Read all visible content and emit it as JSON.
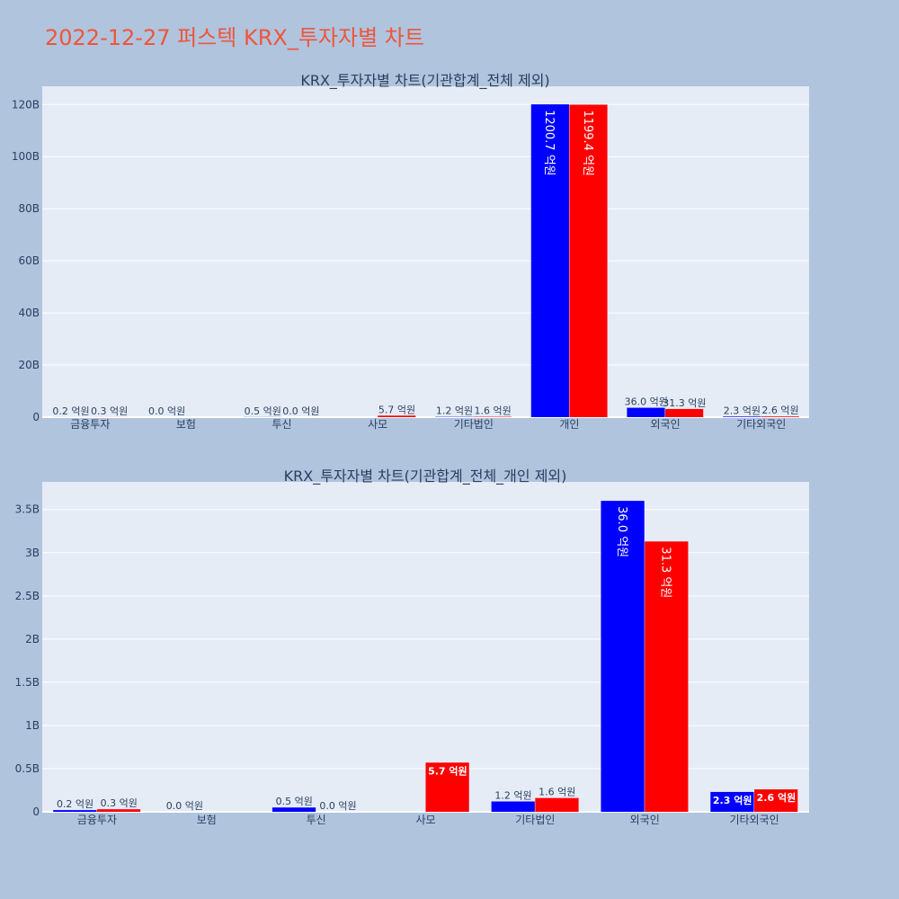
{
  "page_title": "2022-12-27 퍼스텍 KRX_투자자별 차트",
  "colors": {
    "buy": "#0000ff",
    "sell": "#ff0000",
    "plot_bg": "#e5ecf6",
    "page_bg": "#b0c4de",
    "text": "#2a3f5f",
    "title": "#ef553b"
  },
  "chart_data": [
    {
      "type": "bar",
      "title": "KRX_투자자별 차트(기관합계_전체 제외)",
      "categories": [
        "금융투자",
        "보험",
        "투신",
        "사모",
        "기타법인",
        "개인",
        "외국인",
        "기타외국인"
      ],
      "ylim": [
        0,
        127000000000
      ],
      "yticks": [
        0,
        20000000000,
        40000000000,
        60000000000,
        80000000000,
        100000000000,
        120000000000
      ],
      "yticklabels": [
        "0",
        "20B",
        "40B",
        "60B",
        "80B",
        "100B",
        "120B"
      ],
      "grid": true,
      "series": [
        {
          "color": "blue",
          "values": [
            20000000,
            0,
            50000000,
            null,
            120000000,
            120070000000,
            3600000000,
            230000000
          ],
          "labels": [
            "0.2 억원",
            "0.0 억원",
            "0.5 억원",
            "",
            "1.2 억원",
            "1200.7 억원",
            "36.0 억원",
            "2.3 억원"
          ]
        },
        {
          "color": "red",
          "values": [
            30000000,
            null,
            0,
            570000000,
            160000000,
            119940000000,
            3130000000,
            260000000
          ],
          "labels": [
            "0.3 억원",
            "",
            "0.0 억원",
            "5.7 억원",
            "1.6 억원",
            "1199.4 억원",
            "31.3 억원",
            "2.6 억원"
          ]
        }
      ]
    },
    {
      "type": "bar",
      "title": "KRX_투자자별 차트(기관합계_전체_개인 제외)",
      "categories": [
        "금융투자",
        "보험",
        "투신",
        "사모",
        "기타법인",
        "외국인",
        "기타외국인"
      ],
      "ylim": [
        -10000000,
        3820000000
      ],
      "yticks": [
        0,
        500000000,
        1000000000,
        1500000000,
        2000000000,
        2500000000,
        3000000000,
        3500000000
      ],
      "yticklabels": [
        "0",
        "0.5B",
        "1B",
        "1.5B",
        "2B",
        "2.5B",
        "3B",
        "3.5B"
      ],
      "grid": true,
      "series": [
        {
          "color": "blue",
          "values": [
            20000000,
            0,
            50000000,
            null,
            120000000,
            3600000000,
            230000000
          ],
          "labels": [
            "0.2 억원",
            "0.0 억원",
            "0.5 억원",
            "",
            "1.2 억원",
            "36.0 억원",
            "2.3 억원"
          ]
        },
        {
          "color": "red",
          "values": [
            30000000,
            null,
            0,
            570000000,
            160000000,
            3130000000,
            260000000
          ],
          "labels": [
            "0.3 억원",
            "",
            "0.0 억원",
            "5.7 억원",
            "1.6 억원",
            "31.3 억원",
            "2.6 억원"
          ]
        }
      ]
    }
  ]
}
